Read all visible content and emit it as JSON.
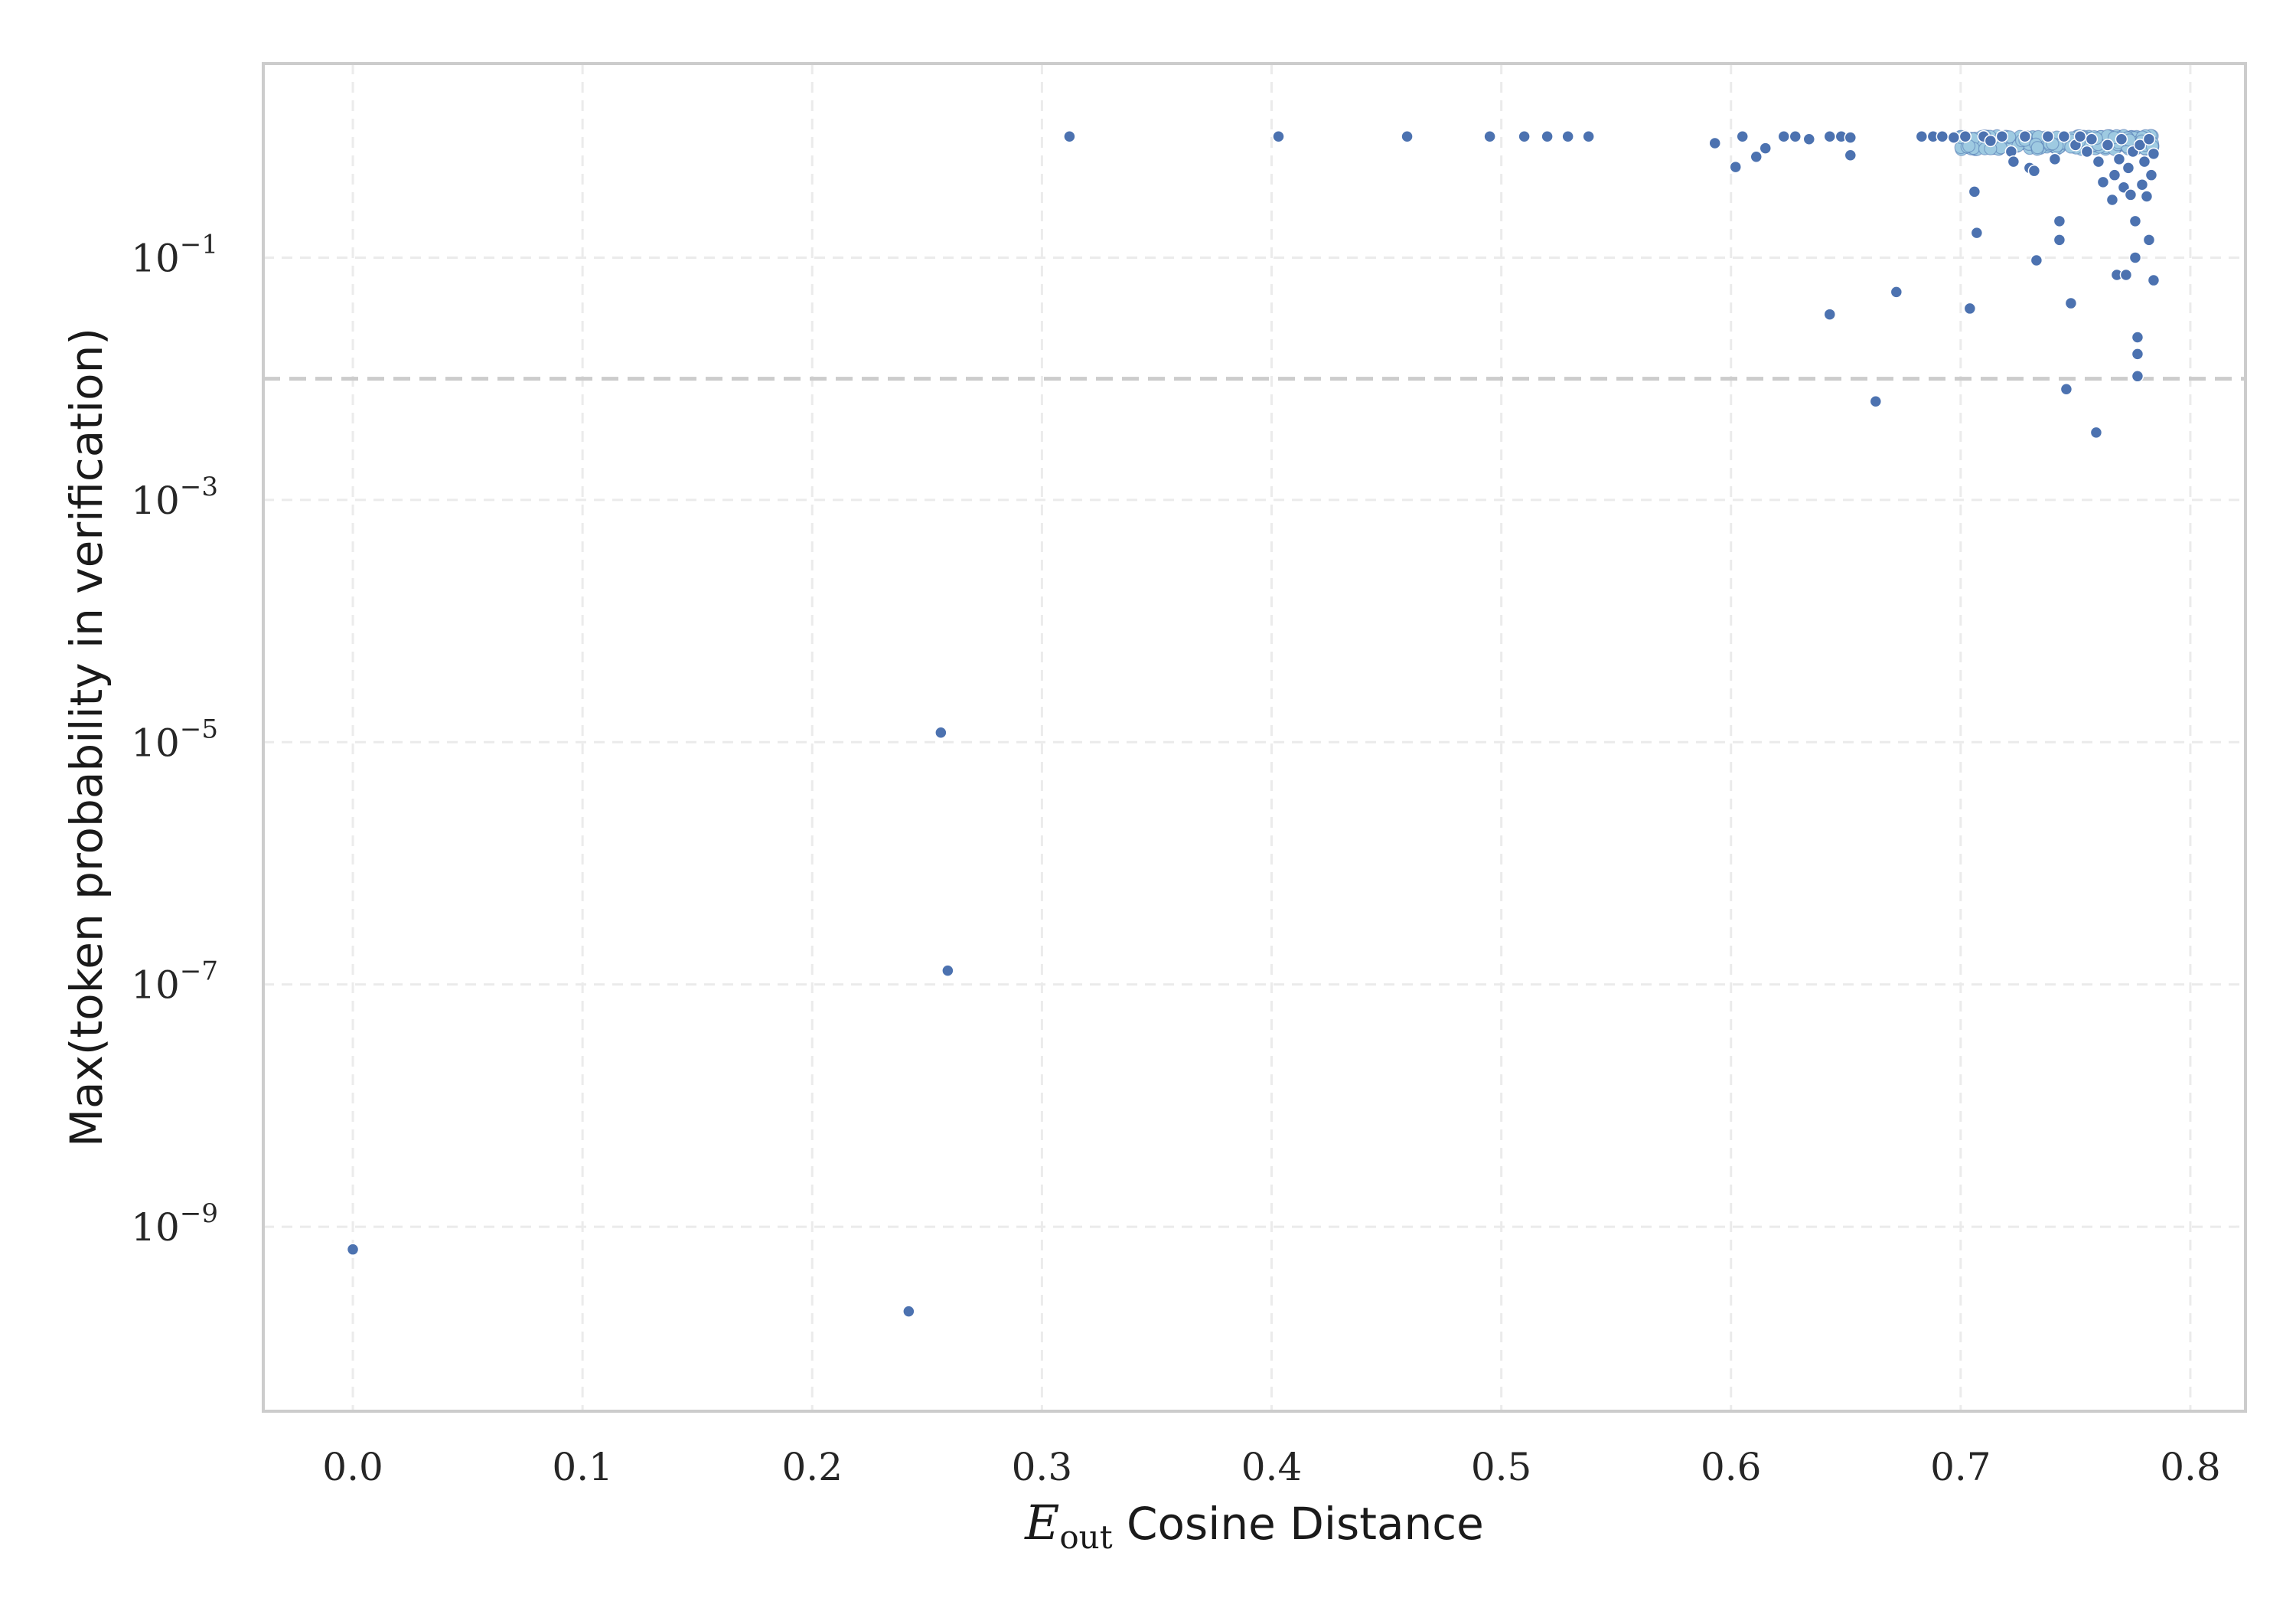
{
  "chart_data": {
    "type": "scatter",
    "title": "",
    "xlabel": {
      "main": "E",
      "subscript": "out",
      "suffix": " Cosine Distance"
    },
    "ylabel": "Max(token probability in verification)",
    "x_scale": "linear",
    "y_scale": "log",
    "xlim": [
      -0.039,
      0.824
    ],
    "ylim": [
      3e-11,
      4.0
    ],
    "x_ticks": [
      {
        "value": 0.0,
        "label": "0.0"
      },
      {
        "value": 0.1,
        "label": "0.1"
      },
      {
        "value": 0.2,
        "label": "0.2"
      },
      {
        "value": 0.3,
        "label": "0.3"
      },
      {
        "value": 0.4,
        "label": "0.4"
      },
      {
        "value": 0.5,
        "label": "0.5"
      },
      {
        "value": 0.6,
        "label": "0.6"
      },
      {
        "value": 0.7,
        "label": "0.7"
      },
      {
        "value": 0.8,
        "label": "0.8"
      }
    ],
    "y_ticks": [
      {
        "value": 0.1,
        "base": "10",
        "exp": "−1"
      },
      {
        "value": 0.001,
        "base": "10",
        "exp": "−3"
      },
      {
        "value": 1e-05,
        "base": "10",
        "exp": "−5"
      },
      {
        "value": 1e-07,
        "base": "10",
        "exp": "−7"
      },
      {
        "value": 1e-09,
        "base": "10",
        "exp": "−9"
      }
    ],
    "grid": true,
    "reference_line": {
      "axis": "y",
      "value": 0.01,
      "style": "dashed",
      "color": "#cccccc"
    },
    "colors": {
      "points": "#4c72b0",
      "dense_points": "#9ecae1",
      "frame": "#cccccc",
      "grid": "#ebebeb"
    },
    "series": [
      {
        "points": [
          [
            0.0,
            6.5e-10
          ],
          [
            0.242,
            2e-10
          ],
          [
            0.256,
            1.2e-05
          ],
          [
            0.259,
            1.3e-07
          ],
          [
            0.312,
            1.0
          ],
          [
            0.403,
            1.0
          ],
          [
            0.459,
            1.0
          ],
          [
            0.495,
            1.0
          ],
          [
            0.51,
            1.0
          ],
          [
            0.52,
            1.0
          ],
          [
            0.529,
            1.0
          ],
          [
            0.538,
            1.0
          ],
          [
            0.593,
            0.88
          ],
          [
            0.602,
            0.56
          ],
          [
            0.605,
            1.0
          ],
          [
            0.611,
            0.68
          ],
          [
            0.615,
            0.8
          ],
          [
            0.623,
            1.0
          ],
          [
            0.628,
            1.0
          ],
          [
            0.634,
            0.95
          ],
          [
            0.643,
            1.0
          ],
          [
            0.648,
            1.0
          ],
          [
            0.652,
            0.98
          ],
          [
            0.652,
            0.7
          ],
          [
            0.643,
            0.034
          ],
          [
            0.663,
            0.0065
          ],
          [
            0.672,
            0.052
          ],
          [
            0.683,
            1.0
          ],
          [
            0.688,
            1.0
          ],
          [
            0.692,
            1.0
          ],
          [
            0.697,
            0.98
          ],
          [
            0.702,
            1.0
          ],
          [
            0.704,
            0.038
          ],
          [
            0.706,
            0.35
          ],
          [
            0.707,
            0.16
          ],
          [
            0.71,
            1.0
          ],
          [
            0.713,
            0.92
          ],
          [
            0.718,
            1.0
          ],
          [
            0.722,
            0.75
          ],
          [
            0.723,
            0.62
          ],
          [
            0.728,
            1.0
          ],
          [
            0.73,
            0.55
          ],
          [
            0.732,
            0.52
          ],
          [
            0.733,
            0.095
          ],
          [
            0.738,
            1.0
          ],
          [
            0.741,
            0.65
          ],
          [
            0.743,
            0.2
          ],
          [
            0.743,
            0.14
          ],
          [
            0.745,
            1.0
          ],
          [
            0.746,
            0.0082
          ],
          [
            0.748,
            0.042
          ],
          [
            0.75,
            0.85
          ],
          [
            0.752,
            1.0
          ],
          [
            0.755,
            0.75
          ],
          [
            0.757,
            0.95
          ],
          [
            0.759,
            0.0036
          ],
          [
            0.76,
            0.62
          ],
          [
            0.762,
            0.42
          ],
          [
            0.764,
            0.85
          ],
          [
            0.766,
            0.3
          ],
          [
            0.767,
            0.48
          ],
          [
            0.768,
            0.072
          ],
          [
            0.769,
            0.65
          ],
          [
            0.77,
            0.95
          ],
          [
            0.771,
            0.38
          ],
          [
            0.772,
            0.072
          ],
          [
            0.773,
            0.55
          ],
          [
            0.774,
            0.33
          ],
          [
            0.775,
            0.75
          ],
          [
            0.776,
            0.2
          ],
          [
            0.776,
            0.1
          ],
          [
            0.777,
            0.022
          ],
          [
            0.777,
            0.016
          ],
          [
            0.777,
            0.0105
          ],
          [
            0.778,
            0.85
          ],
          [
            0.779,
            0.4
          ],
          [
            0.78,
            0.62
          ],
          [
            0.781,
            0.32
          ],
          [
            0.782,
            0.95
          ],
          [
            0.782,
            0.14
          ],
          [
            0.783,
            0.48
          ],
          [
            0.784,
            0.065
          ],
          [
            0.784,
            0.72
          ]
        ]
      }
    ],
    "dense_cluster": {
      "x_range": [
        0.7,
        0.784
      ],
      "y_range": [
        0.78,
        1.02
      ]
    }
  }
}
